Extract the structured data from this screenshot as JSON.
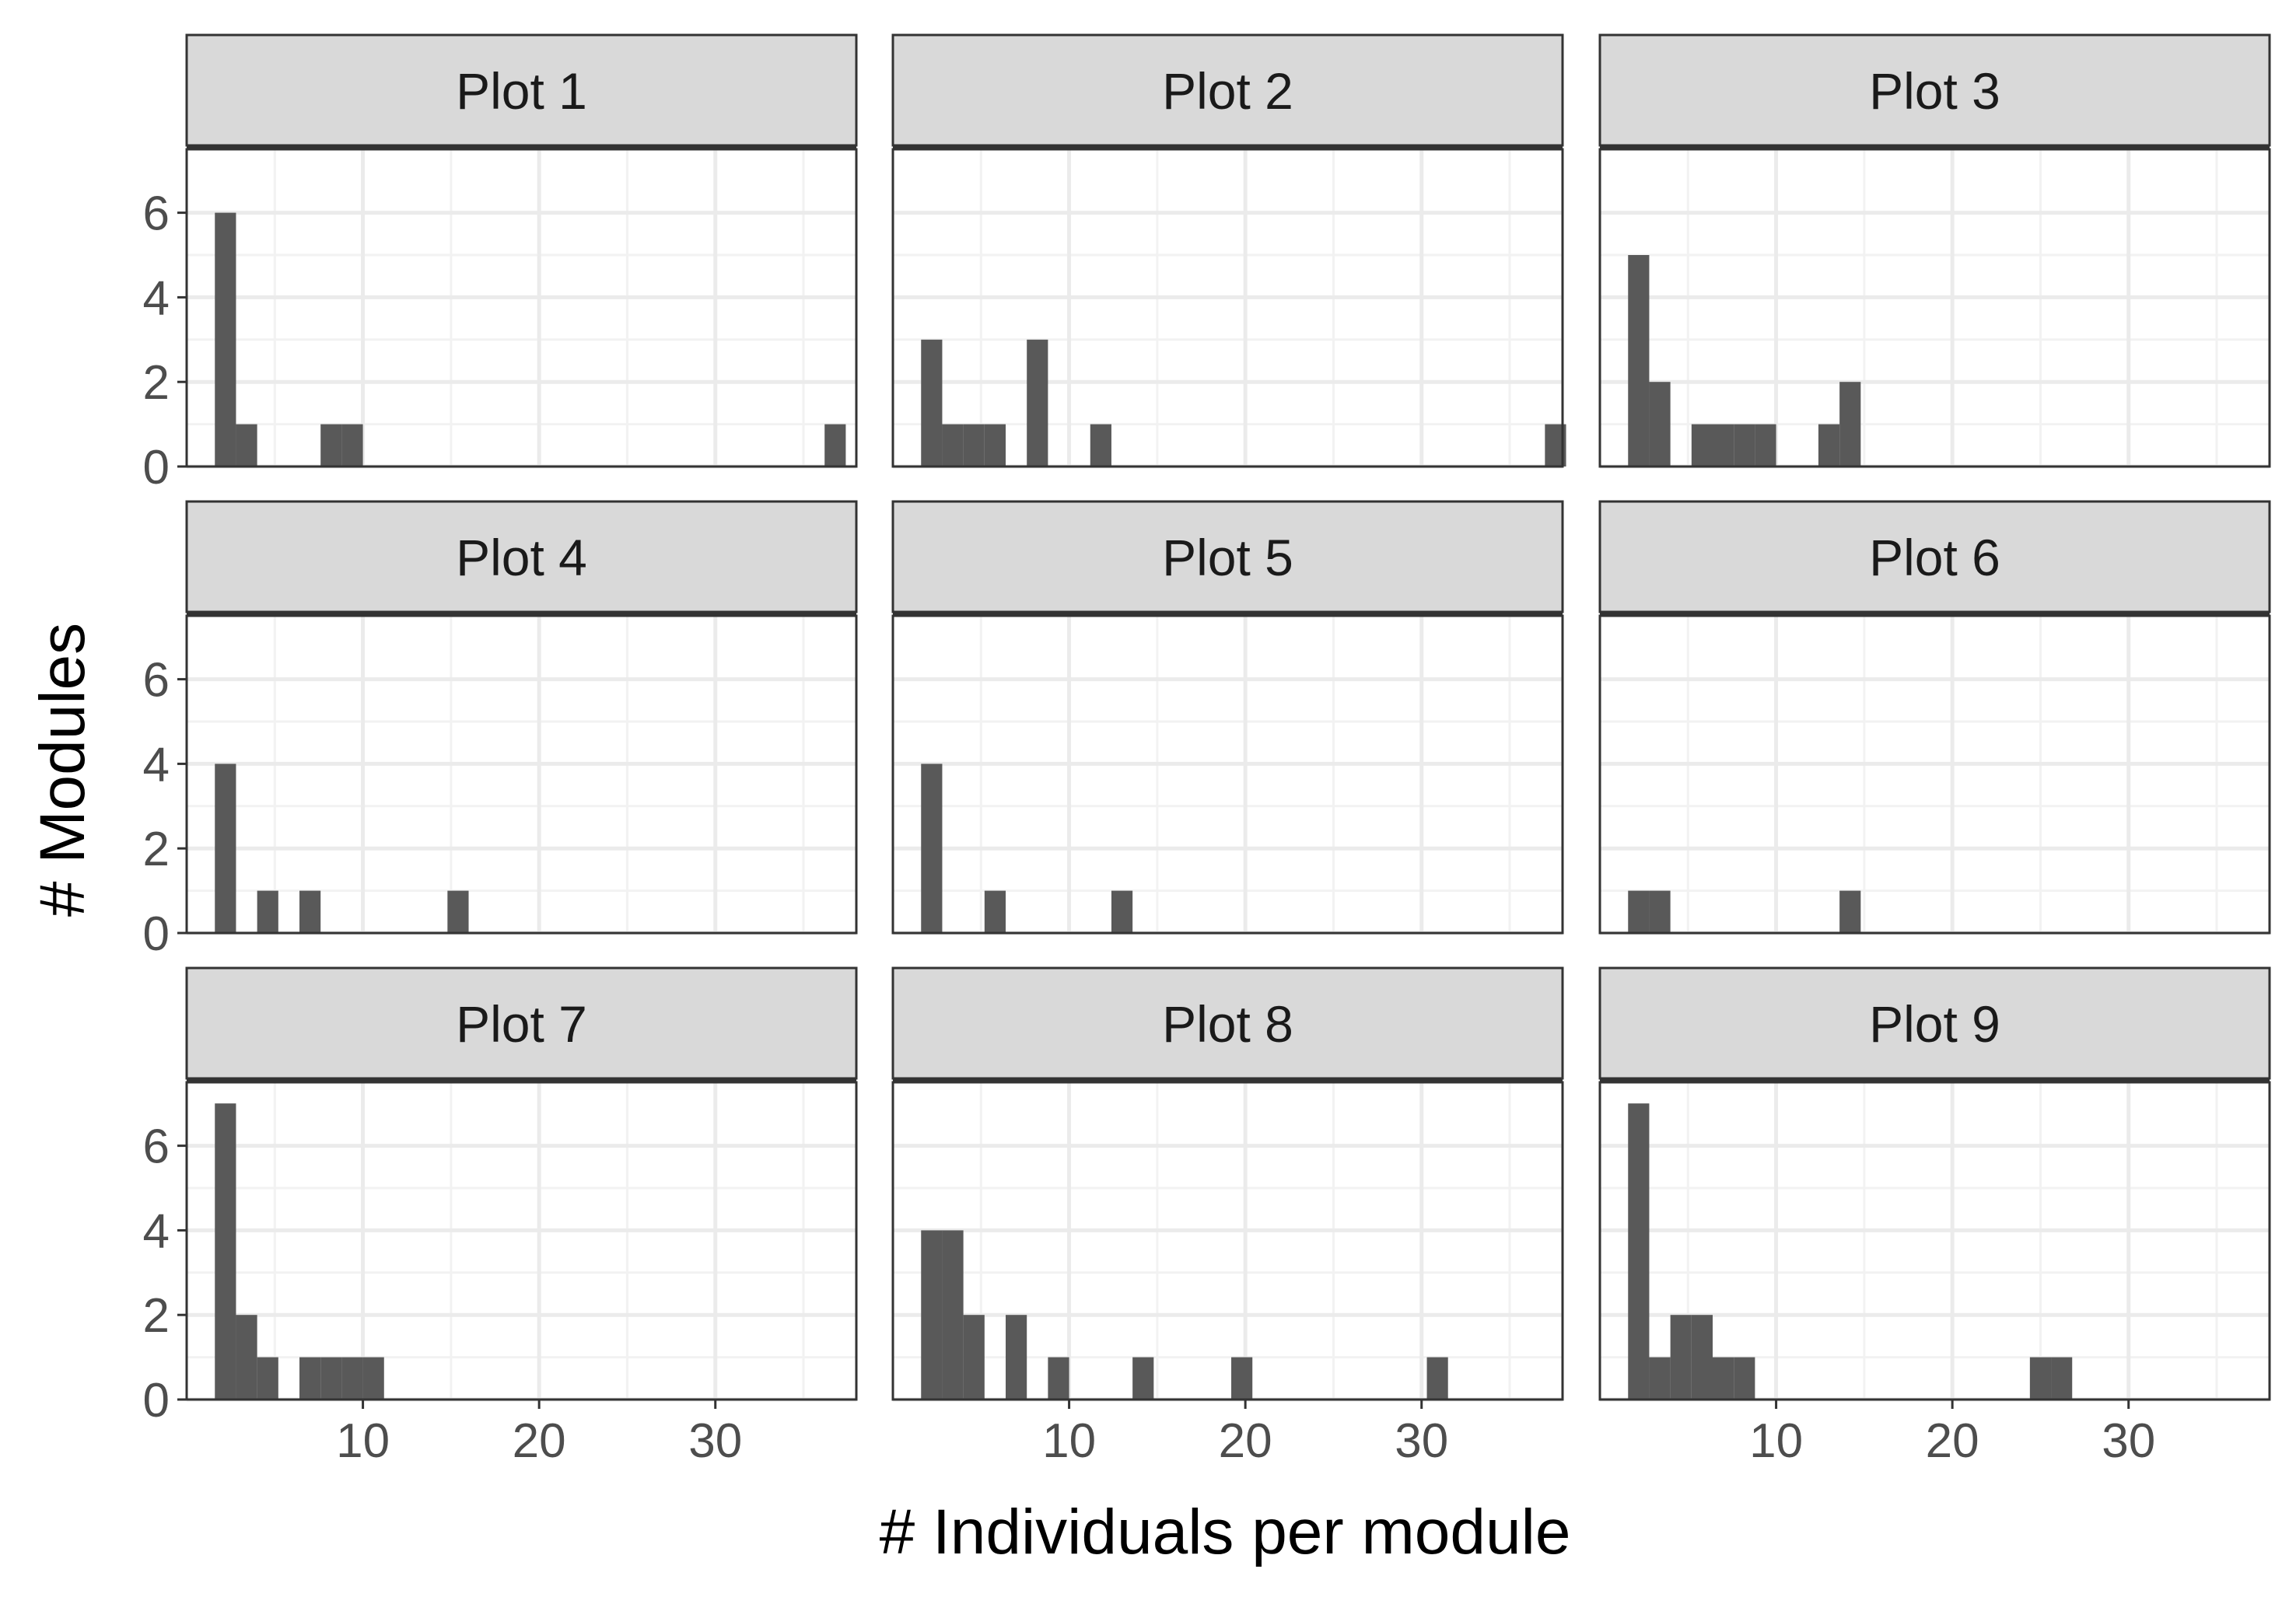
{
  "chart_data": {
    "type": "bar",
    "subtype": "faceted-histogram",
    "xlabel": "# Individuals per module",
    "ylabel": "# Modules",
    "xlim": [
      0,
      38
    ],
    "ylim": [
      0,
      7.5
    ],
    "bin_width": 1.2,
    "x_ticks": [
      10,
      20,
      30
    ],
    "y_ticks": [
      0,
      2,
      4,
      6
    ],
    "grid": "on",
    "bar_color": "#595959",
    "strip_color": "#d9d9d9",
    "facets": [
      {
        "title": "Plot 1",
        "bins": [
          {
            "x": 2.2,
            "count": 6
          },
          {
            "x": 3.4,
            "count": 1
          },
          {
            "x": 8.2,
            "count": 1
          },
          {
            "x": 9.4,
            "count": 1
          },
          {
            "x": 36.8,
            "count": 1
          }
        ]
      },
      {
        "title": "Plot 2",
        "bins": [
          {
            "x": 2.2,
            "count": 3
          },
          {
            "x": 3.4,
            "count": 1
          },
          {
            "x": 4.6,
            "count": 1
          },
          {
            "x": 5.8,
            "count": 1
          },
          {
            "x": 8.2,
            "count": 3
          },
          {
            "x": 11.8,
            "count": 1
          },
          {
            "x": 37.6,
            "count": 1
          }
        ]
      },
      {
        "title": "Plot 3",
        "bins": [
          {
            "x": 2.2,
            "count": 5
          },
          {
            "x": 3.4,
            "count": 2
          },
          {
            "x": 5.8,
            "count": 1
          },
          {
            "x": 7.0,
            "count": 1
          },
          {
            "x": 8.2,
            "count": 1
          },
          {
            "x": 9.4,
            "count": 1
          },
          {
            "x": 13.0,
            "count": 1
          },
          {
            "x": 14.2,
            "count": 2
          }
        ]
      },
      {
        "title": "Plot 4",
        "bins": [
          {
            "x": 2.2,
            "count": 4
          },
          {
            "x": 4.6,
            "count": 1
          },
          {
            "x": 7.0,
            "count": 1
          },
          {
            "x": 15.4,
            "count": 1
          }
        ]
      },
      {
        "title": "Plot 5",
        "bins": [
          {
            "x": 2.2,
            "count": 4
          },
          {
            "x": 5.8,
            "count": 1
          },
          {
            "x": 13.0,
            "count": 1
          }
        ]
      },
      {
        "title": "Plot 6",
        "bins": [
          {
            "x": 2.2,
            "count": 1
          },
          {
            "x": 3.4,
            "count": 1
          },
          {
            "x": 14.2,
            "count": 1
          }
        ]
      },
      {
        "title": "Plot 7",
        "bins": [
          {
            "x": 2.2,
            "count": 7
          },
          {
            "x": 3.4,
            "count": 2
          },
          {
            "x": 4.6,
            "count": 1
          },
          {
            "x": 7.0,
            "count": 1
          },
          {
            "x": 8.2,
            "count": 1
          },
          {
            "x": 9.4,
            "count": 1
          },
          {
            "x": 10.6,
            "count": 1
          }
        ]
      },
      {
        "title": "Plot 8",
        "bins": [
          {
            "x": 2.2,
            "count": 4
          },
          {
            "x": 3.4,
            "count": 4
          },
          {
            "x": 4.6,
            "count": 2
          },
          {
            "x": 7.0,
            "count": 2
          },
          {
            "x": 9.4,
            "count": 1
          },
          {
            "x": 14.2,
            "count": 1
          },
          {
            "x": 19.8,
            "count": 1
          },
          {
            "x": 30.9,
            "count": 1
          }
        ]
      },
      {
        "title": "Plot 9",
        "bins": [
          {
            "x": 2.2,
            "count": 7
          },
          {
            "x": 3.4,
            "count": 1
          },
          {
            "x": 4.6,
            "count": 2
          },
          {
            "x": 5.8,
            "count": 2
          },
          {
            "x": 7.0,
            "count": 1
          },
          {
            "x": 8.2,
            "count": 1
          },
          {
            "x": 25.0,
            "count": 1
          },
          {
            "x": 26.2,
            "count": 1
          }
        ]
      }
    ]
  }
}
